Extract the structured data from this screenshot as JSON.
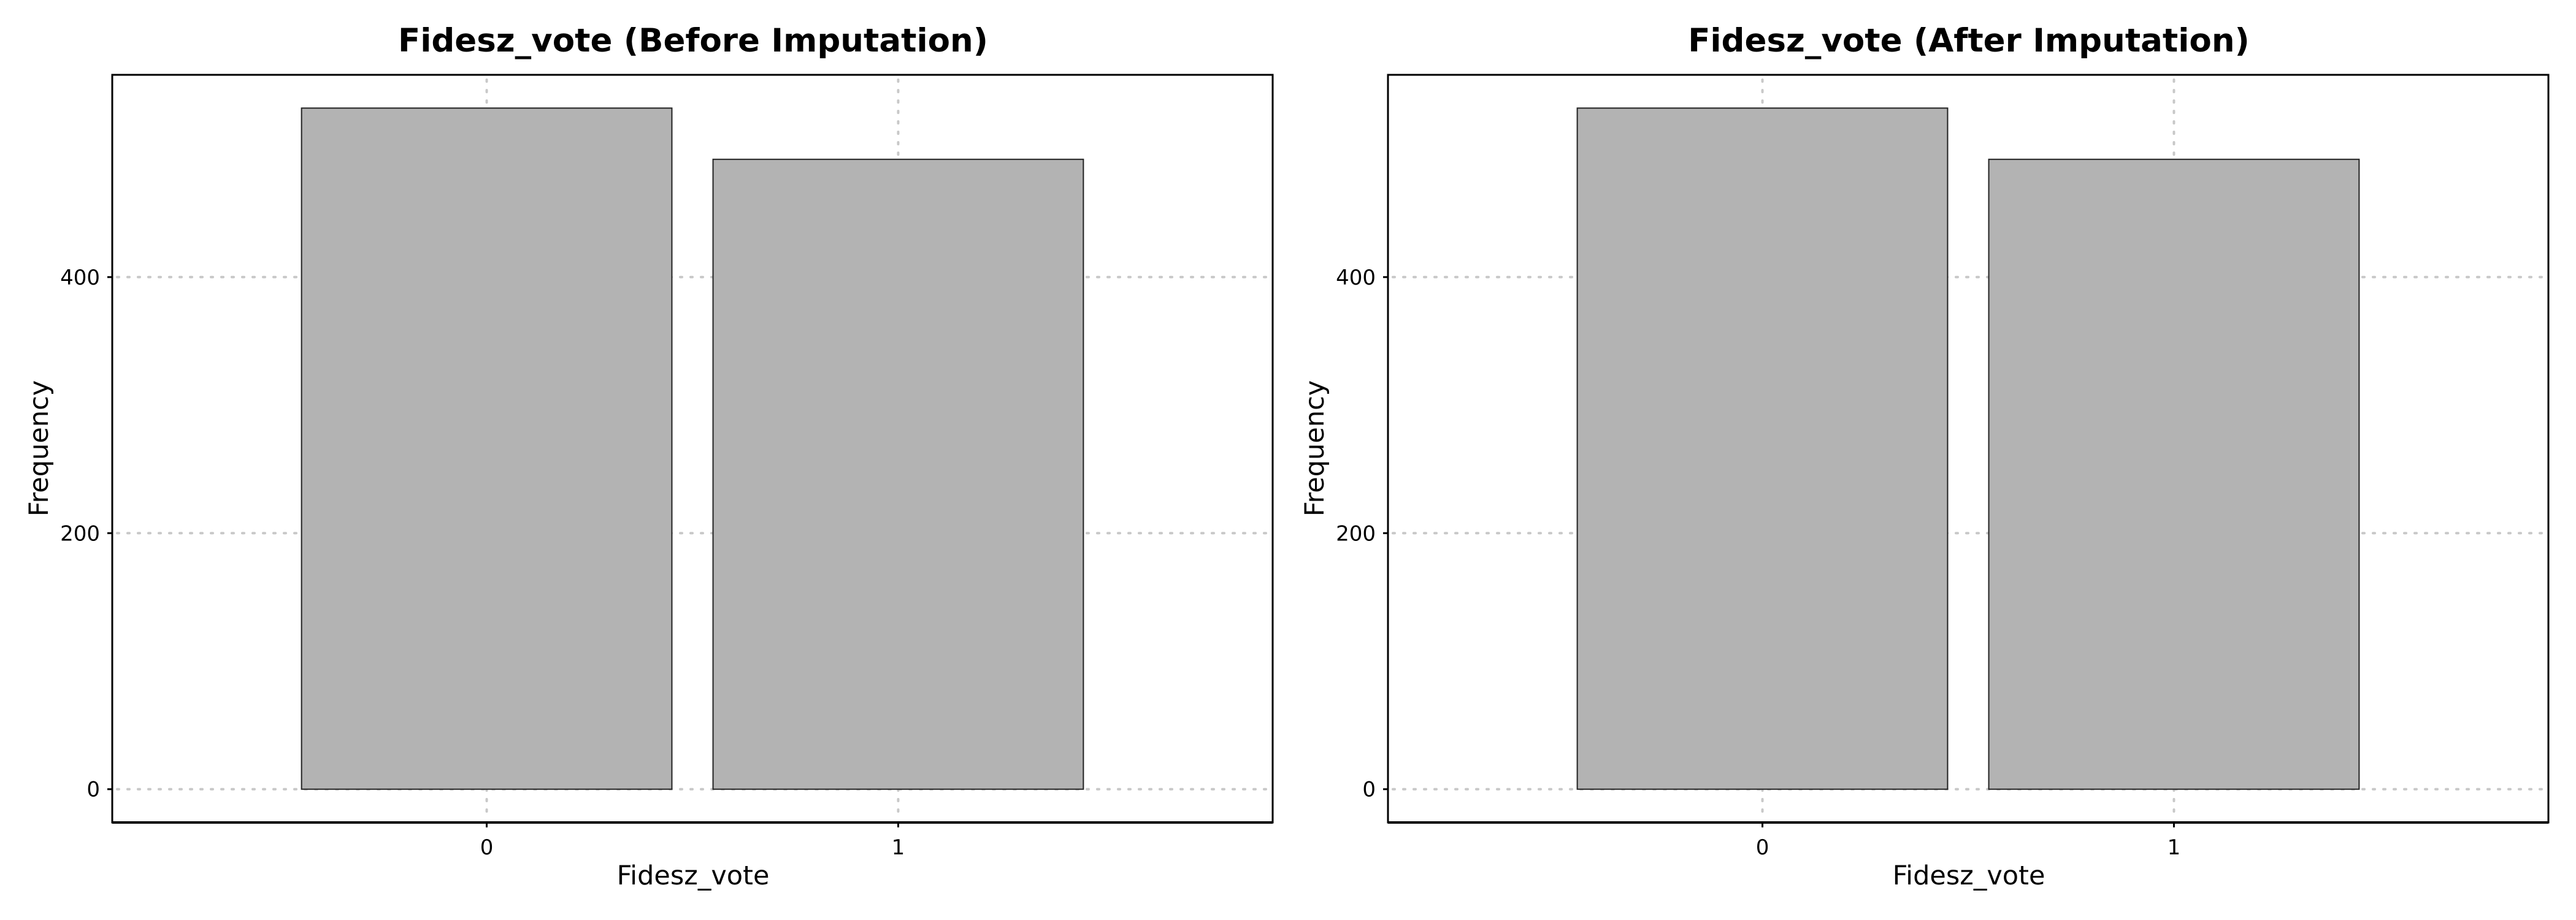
{
  "chart_data": [
    {
      "type": "bar",
      "title": "Fidesz_vote (Before Imputation)",
      "xlabel": "Fidesz_vote",
      "ylabel": "Frequency",
      "categories": [
        "0",
        "1"
      ],
      "values": [
        532,
        492
      ],
      "ylim": [
        -26,
        558
      ],
      "yticks": [
        0,
        200,
        400
      ],
      "grid": true
    },
    {
      "type": "bar",
      "title": "Fidesz_vote (After Imputation)",
      "xlabel": "Fidesz_vote",
      "ylabel": "Frequency",
      "categories": [
        "0",
        "1"
      ],
      "values": [
        532,
        492
      ],
      "ylim": [
        -26,
        558
      ],
      "yticks": [
        0,
        200,
        400
      ],
      "grid": true
    }
  ]
}
